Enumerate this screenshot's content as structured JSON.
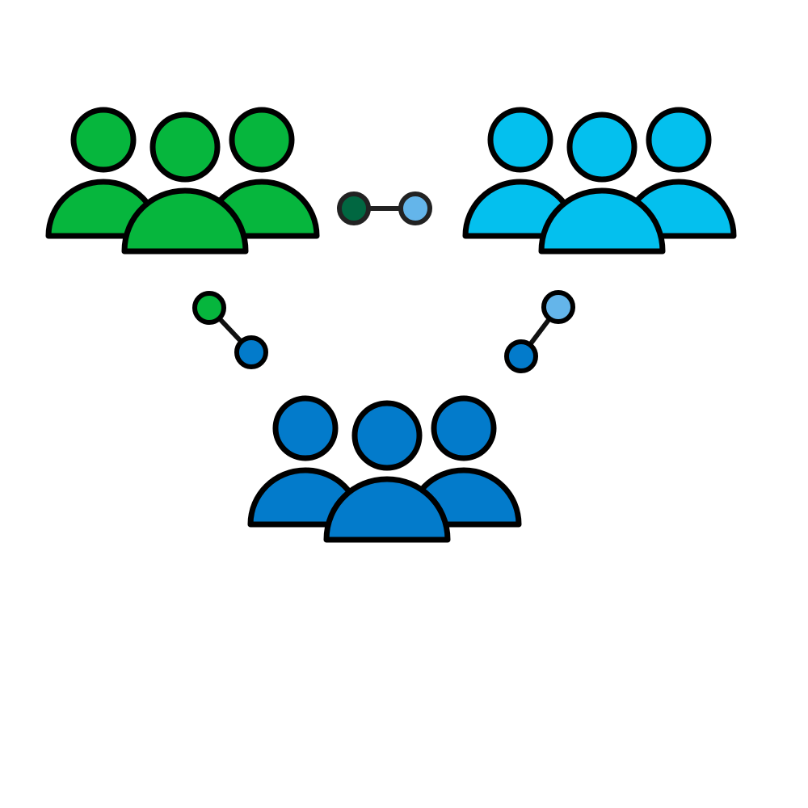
{
  "groups": [
    {
      "id": "team-green",
      "icon": "people-group-icon",
      "color": "#06B63D"
    },
    {
      "id": "team-cyan",
      "icon": "people-group-icon",
      "color": "#04C0EE"
    },
    {
      "id": "team-blue",
      "icon": "people-group-icon",
      "color": "#037BCB"
    }
  ],
  "links": [
    {
      "id": "link-green-cyan",
      "icon": "connection-icon",
      "from_color": "#016741",
      "to_color": "#64B5EA",
      "line_color": "#222222",
      "node_stroke": "#222222"
    },
    {
      "id": "link-green-blue",
      "icon": "connection-icon",
      "from_color": "#06B63D",
      "to_color": "#037BCB",
      "line_color": "#111111",
      "node_stroke": "#000000"
    },
    {
      "id": "link-cyan-blue",
      "icon": "connection-icon",
      "from_color": "#64B5EA",
      "to_color": "#037BCB",
      "line_color": "#111111",
      "node_stroke": "#000000"
    }
  ]
}
